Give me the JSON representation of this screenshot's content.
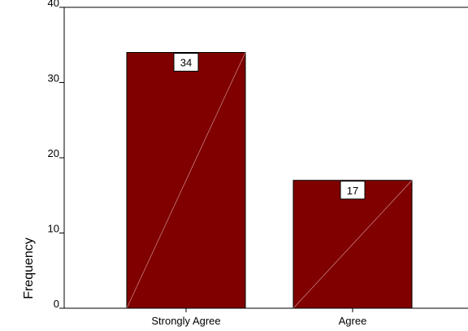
{
  "chart_data": {
    "type": "bar",
    "categories": [
      "Strongly Agree",
      "Agree"
    ],
    "values": [
      34,
      17
    ],
    "data_labels": [
      "34",
      "17"
    ],
    "title": "",
    "xlabel": "",
    "ylabel": "Frequency",
    "ylim": [
      0,
      40
    ],
    "yticks": [
      0,
      10,
      20,
      30,
      40
    ],
    "ytick_labels": [
      "0",
      "10",
      "20",
      "30",
      "40"
    ],
    "grid": false,
    "legend": "none",
    "bar_color": "#800000",
    "bar_edge_color": "#000000"
  }
}
